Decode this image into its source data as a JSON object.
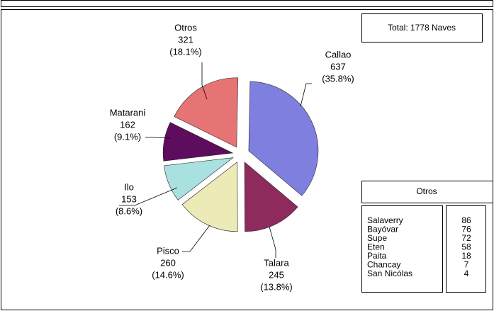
{
  "chart_data": {
    "type": "pie",
    "categories": [
      "Callao",
      "Talara",
      "Pisco",
      "Ilo",
      "Matarani",
      "Otros"
    ],
    "values": [
      637,
      245,
      260,
      153,
      162,
      321
    ],
    "percent_labels": [
      "(35.8%)",
      "(13.8%)",
      "(14.6%)",
      "(8.6%)",
      "(9.1%)",
      "(18.1%)"
    ],
    "colors": [
      "#7f7fe0",
      "#8e2a5c",
      "#ecebb8",
      "#a9e0e0",
      "#5e0c5e",
      "#e67474"
    ],
    "total_label": "Total:  1778 Naves",
    "other_table": {
      "title": "Otros",
      "rows": [
        [
          "Salaverry",
          86
        ],
        [
          "Bayóvar",
          76
        ],
        [
          "Supe",
          72
        ],
        [
          "Eten",
          58
        ],
        [
          "Paita",
          18
        ],
        [
          "Chancay",
          7
        ],
        [
          "San Nicólas",
          4
        ]
      ]
    }
  }
}
